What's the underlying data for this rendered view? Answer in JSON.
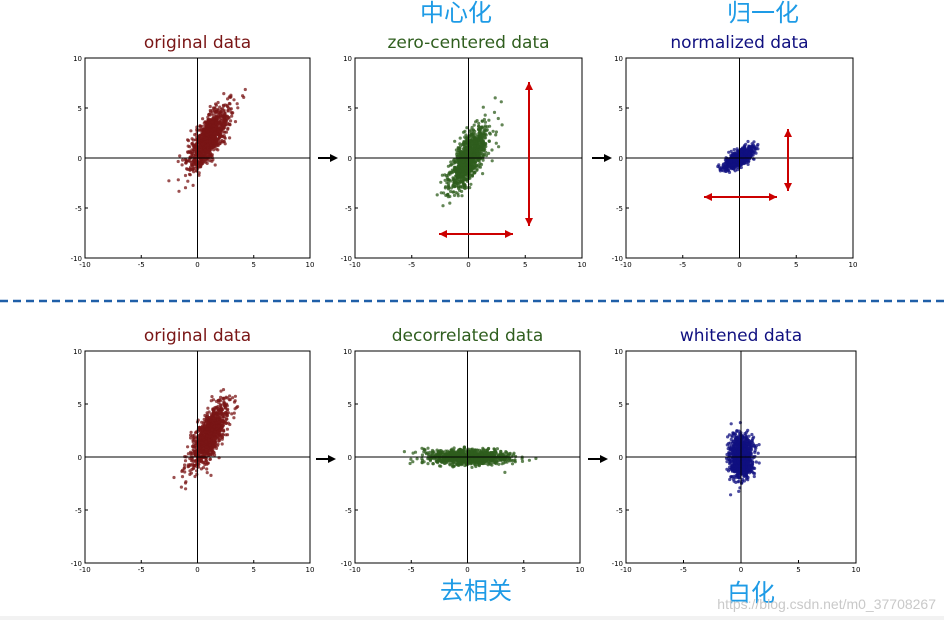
{
  "annotations": {
    "centering": "中心化",
    "normalization": "归一化",
    "decorrelation": "去相关",
    "whitening": "白化"
  },
  "watermark": "https://blog.csdn.net/m0_37708267",
  "colors": {
    "dark_red": "#7a1616",
    "dark_green": "#2f5e1e",
    "dark_blue": "#101080",
    "annotation_blue": "#1e9be6",
    "red_arrow": "#cc0000",
    "divider_blue": "#1f5fa8"
  },
  "chart_data": [
    {
      "type": "scatter",
      "title": "original data",
      "xlim": [
        -10,
        10
      ],
      "ylim": [
        -10,
        10
      ],
      "xticks": [
        "-10",
        "-5",
        "0",
        "5",
        "10"
      ],
      "yticks": [
        "10",
        "5",
        "0",
        "-5",
        "-10"
      ],
      "grid": false,
      "series": [
        {
          "color": "#7a1616",
          "center": [
            1,
            2
          ],
          "principal_axis_slope": 2.2,
          "spread_major": 3.4,
          "spread_minor": 0.55,
          "n_points": 1000
        }
      ]
    },
    {
      "type": "scatter",
      "title": "zero-centered data",
      "xlim": [
        -10,
        10
      ],
      "ylim": [
        -10,
        10
      ],
      "xticks": [
        "-10",
        "-5",
        "0",
        "5",
        "10"
      ],
      "yticks": [
        "10",
        "5",
        "0",
        "-5",
        "-10"
      ],
      "grid": false,
      "series": [
        {
          "color": "#2f5e1e",
          "center": [
            0,
            0
          ],
          "principal_axis_slope": 2.2,
          "spread_major": 3.4,
          "spread_minor": 0.55,
          "n_points": 1000
        }
      ]
    },
    {
      "type": "scatter",
      "title": "normalized data",
      "xlim": [
        -10,
        10
      ],
      "ylim": [
        -10,
        10
      ],
      "xticks": [
        "-10",
        "-5",
        "0",
        "5",
        "10"
      ],
      "yticks": [
        "10",
        "5",
        "0",
        "-5",
        "-10"
      ],
      "grid": false,
      "series": [
        {
          "color": "#101080",
          "center": [
            0,
            0
          ],
          "principal_axis_slope": 0.8,
          "spread_major": 1.45,
          "spread_minor": 0.3,
          "n_points": 900
        }
      ]
    },
    {
      "type": "scatter",
      "title": "original data",
      "xlim": [
        -10,
        10
      ],
      "ylim": [
        -10,
        10
      ],
      "xticks": [
        "-10",
        "-5",
        "0",
        "5",
        "10"
      ],
      "yticks": [
        "10",
        "5",
        "0",
        "-5",
        "-10"
      ],
      "grid": false,
      "series": [
        {
          "color": "#7a1616",
          "center": [
            1,
            2
          ],
          "principal_axis_slope": 2.2,
          "spread_major": 3.4,
          "spread_minor": 0.55,
          "n_points": 1000
        }
      ]
    },
    {
      "type": "scatter",
      "title": "decorrelated data",
      "xlim": [
        -10,
        10
      ],
      "ylim": [
        -10,
        10
      ],
      "xticks": [
        "-10",
        "-5",
        "0",
        "5",
        "10"
      ],
      "yticks": [
        "10",
        "5",
        "0",
        "-5",
        "-10"
      ],
      "grid": false,
      "series": [
        {
          "color": "#2f5e1e",
          "center": [
            0,
            0
          ],
          "principal_axis_slope": 0.0,
          "spread_major": 3.6,
          "spread_minor": 0.35,
          "n_points": 1000
        }
      ]
    },
    {
      "type": "scatter",
      "title": "whitened data",
      "xlim": [
        -10,
        10
      ],
      "ylim": [
        -10,
        10
      ],
      "xticks": [
        "-10",
        "-5",
        "0",
        "5",
        "10"
      ],
      "yticks": [
        "10",
        "5",
        "0",
        "-5",
        "-10"
      ],
      "grid": false,
      "series": [
        {
          "color": "#101080",
          "center": [
            0,
            0
          ],
          "principal_axis_slope": 0.0,
          "spread_major": 1.0,
          "spread_minor": 1.0,
          "n_points": 1000
        }
      ]
    }
  ]
}
